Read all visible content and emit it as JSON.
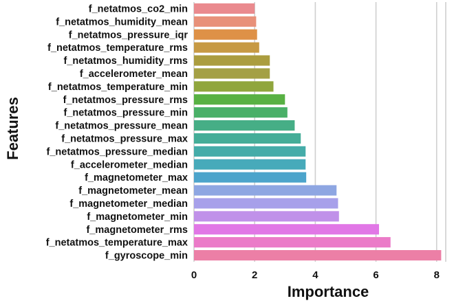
{
  "chart_data": {
    "type": "bar",
    "orientation": "horizontal",
    "xlabel": "Importance",
    "ylabel": "Features",
    "xlim": [
      0,
      8.3
    ],
    "xticks": [
      0,
      2,
      4,
      6,
      8
    ],
    "grid": "vertical",
    "categories": [
      "f_netatmos_co2_min",
      "f_netatmos_humidity_mean",
      "f_netatmos_pressure_iqr",
      "f_netatmos_temperature_rms",
      "f_netatmos_humidity_rms",
      "f_accelerometer_mean",
      "f_netatmos_temperature_min",
      "f_netatmos_pressure_rms",
      "f_netatmos_pressure_min",
      "f_netatmos_pressure_mean",
      "f_netatmos_pressure_max",
      "f_netatmos_pressure_median",
      "f_accelerometer_median",
      "f_magnetometer_max",
      "f_magnetometer_mean",
      "f_magnetometer_median",
      "f_magnetometer_min",
      "f_magnetometer_rms",
      "f_netatmos_temperature_max",
      "f_gyroscope_min"
    ],
    "values": [
      2.0,
      2.05,
      2.08,
      2.15,
      2.5,
      2.5,
      2.62,
      3.0,
      3.08,
      3.32,
      3.52,
      3.68,
      3.68,
      3.7,
      4.7,
      4.75,
      4.78,
      6.1,
      6.48,
      8.15
    ],
    "colors": [
      "#ea8a8e",
      "#e8917a",
      "#de9147",
      "#c79a44",
      "#ab9d3f",
      "#a4a045",
      "#90a63d",
      "#58b143",
      "#4ab068",
      "#46ae86",
      "#44ad98",
      "#45aca9",
      "#47aaba",
      "#4ca4cb",
      "#8ea6e2",
      "#a7a0ea",
      "#c091e9",
      "#e177e6",
      "#eb7bc8",
      "#ec7fa6"
    ]
  }
}
